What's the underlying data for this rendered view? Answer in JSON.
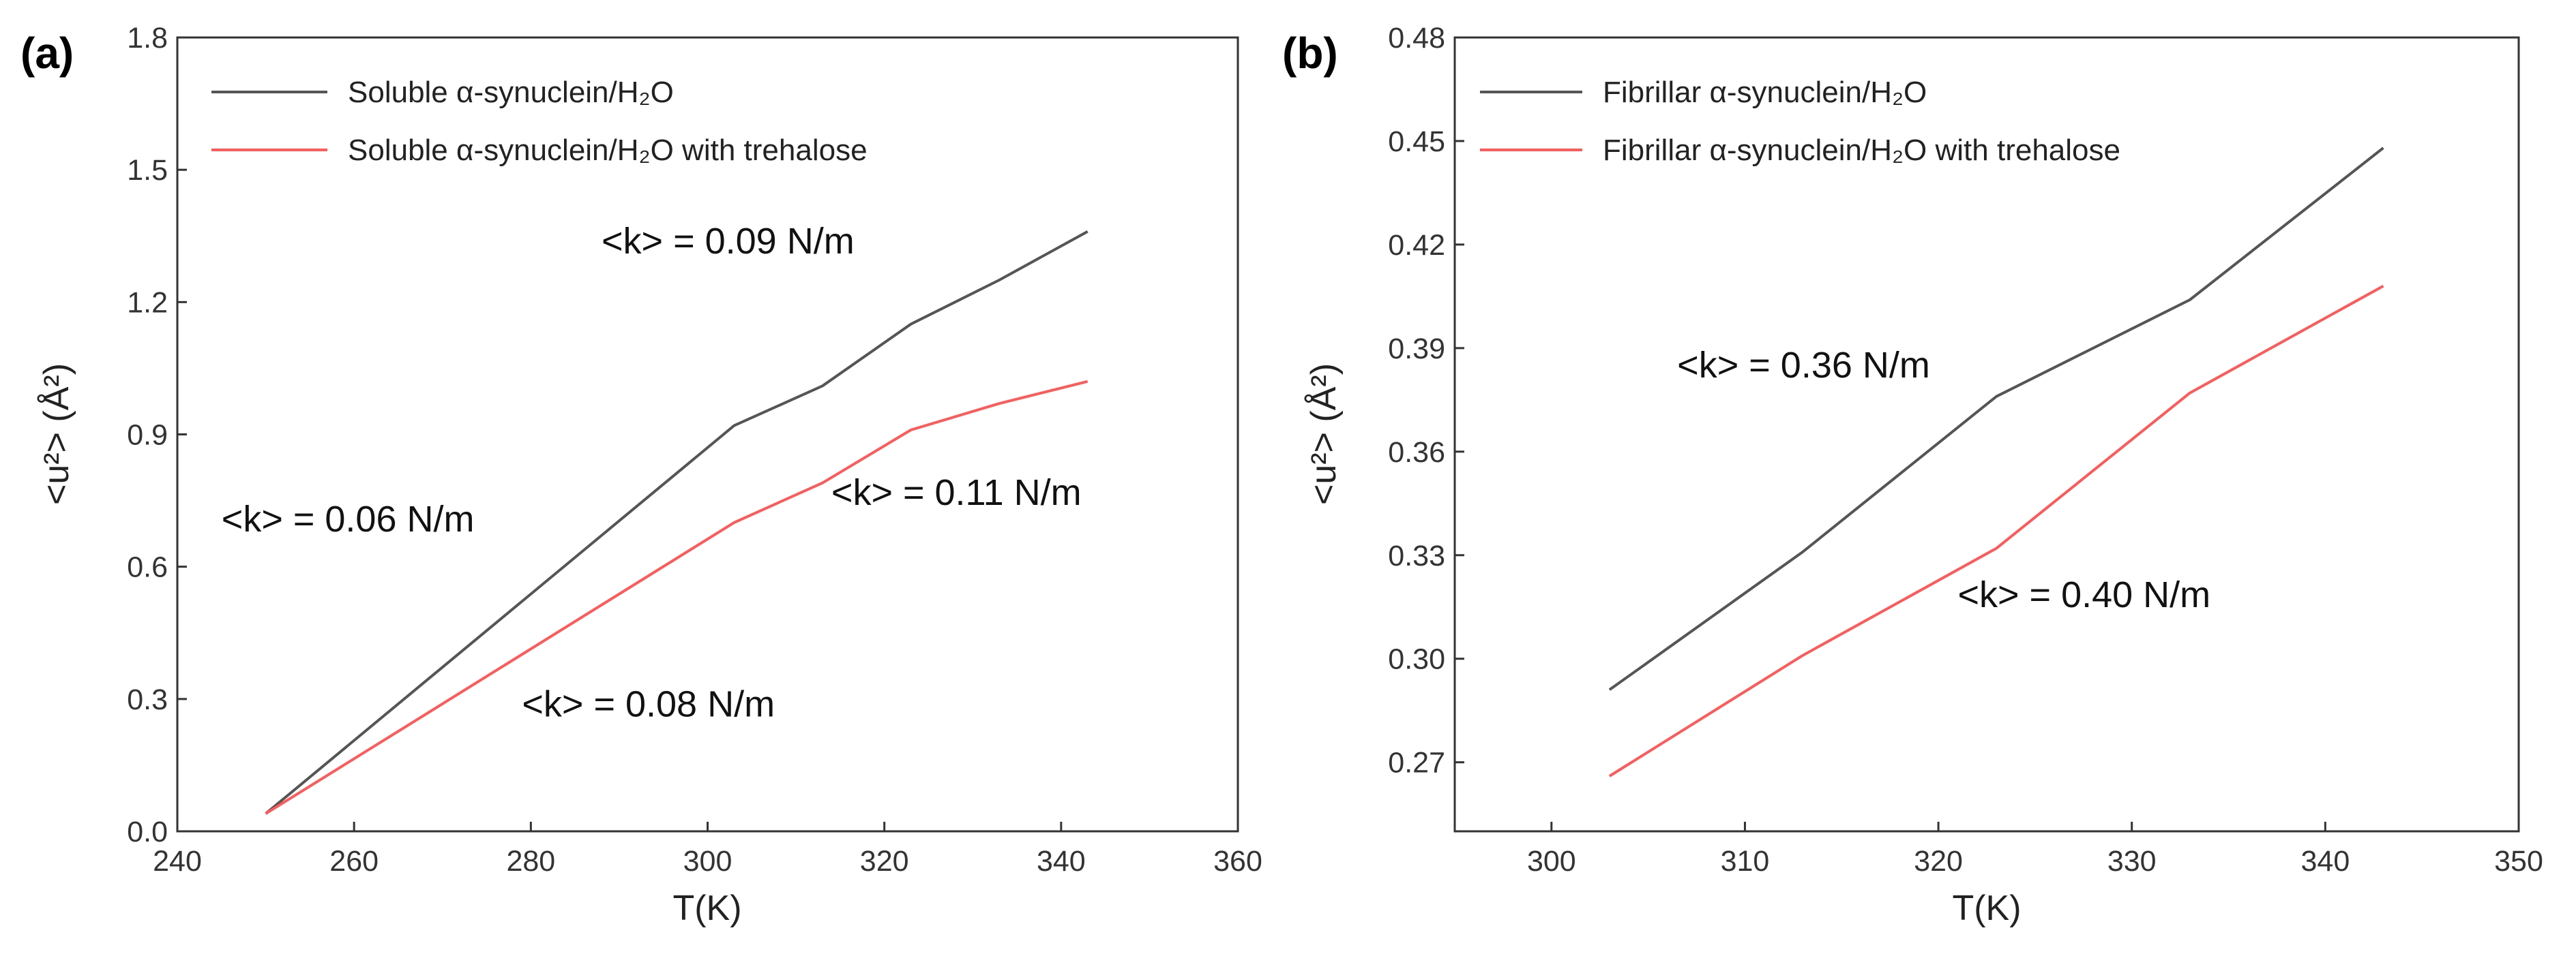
{
  "chart_data": [
    {
      "type": "line",
      "panel_label": "(a)",
      "xlabel": "T(K)",
      "ylabel": "<u²> (Å²)",
      "xlim": [
        240,
        360
      ],
      "ylim": [
        0.0,
        1.8
      ],
      "xticks": [
        240,
        260,
        280,
        300,
        320,
        340,
        360
      ],
      "xtick_labels": [
        "240",
        "260",
        "280",
        "300",
        "320",
        "340",
        "360"
      ],
      "yticks": [
        0.0,
        0.3,
        0.6,
        0.9,
        1.2,
        1.5,
        1.8
      ],
      "ytick_labels": [
        "0.0",
        "0.3",
        "0.6",
        "0.9",
        "1.2",
        "1.5",
        "1.8"
      ],
      "legend_position": "top-left",
      "series": [
        {
          "name": "Soluble α-synuclein/H₂O",
          "color": "#555555",
          "x": [
            250,
            303,
            313,
            323,
            333,
            343
          ],
          "y": [
            0.04,
            0.92,
            1.01,
            1.15,
            1.25,
            1.36
          ]
        },
        {
          "name": "Soluble α-synuclein/H₂O with trehalose",
          "color": "#ff5a5a",
          "x": [
            250,
            303,
            313,
            323,
            333,
            343
          ],
          "y": [
            0.04,
            0.7,
            0.79,
            0.91,
            0.97,
            1.02
          ]
        }
      ],
      "annotations": [
        {
          "text": "<k> = 0.09 N/m",
          "x": 288,
          "y": 1.31
        },
        {
          "text": "<k> = 0.06 N/m",
          "x": 245,
          "y": 0.68
        },
        {
          "text": "<k> = 0.11 N/m",
          "x": 314,
          "y": 0.74
        },
        {
          "text": "<k> = 0.08 N/m",
          "x": 279,
          "y": 0.26
        }
      ]
    },
    {
      "type": "line",
      "panel_label": "(b)",
      "xlabel": "T(K)",
      "ylabel": "<u²> (Å²)",
      "xlim": [
        295,
        350
      ],
      "ylim": [
        0.25,
        0.48
      ],
      "xticks": [
        300,
        310,
        320,
        330,
        340,
        350
      ],
      "xtick_labels": [
        "300",
        "310",
        "320",
        "330",
        "340",
        "350"
      ],
      "yticks": [
        0.27,
        0.3,
        0.33,
        0.36,
        0.39,
        0.42,
        0.45,
        0.48
      ],
      "ytick_labels": [
        "0.27",
        "0.30",
        "0.33",
        "0.36",
        "0.39",
        "0.42",
        "0.45",
        "0.48"
      ],
      "legend_position": "top-left",
      "series": [
        {
          "name": "Fibrillar α-synuclein/H₂O",
          "color": "#555555",
          "x": [
            303,
            313,
            323,
            333,
            343
          ],
          "y": [
            0.291,
            0.331,
            0.376,
            0.404,
            0.448
          ]
        },
        {
          "name": "Fibrillar α-synuclein/H₂O with trehalose",
          "color": "#ff5a5a",
          "x": [
            303,
            313,
            323,
            333,
            343
          ],
          "y": [
            0.266,
            0.301,
            0.332,
            0.377,
            0.408
          ]
        }
      ],
      "annotations": [
        {
          "text": "<k> = 0.36 N/m",
          "x": 306.5,
          "y": 0.3815
        },
        {
          "text": "<k> = 0.40 N/m",
          "x": 321,
          "y": 0.315
        }
      ]
    }
  ]
}
